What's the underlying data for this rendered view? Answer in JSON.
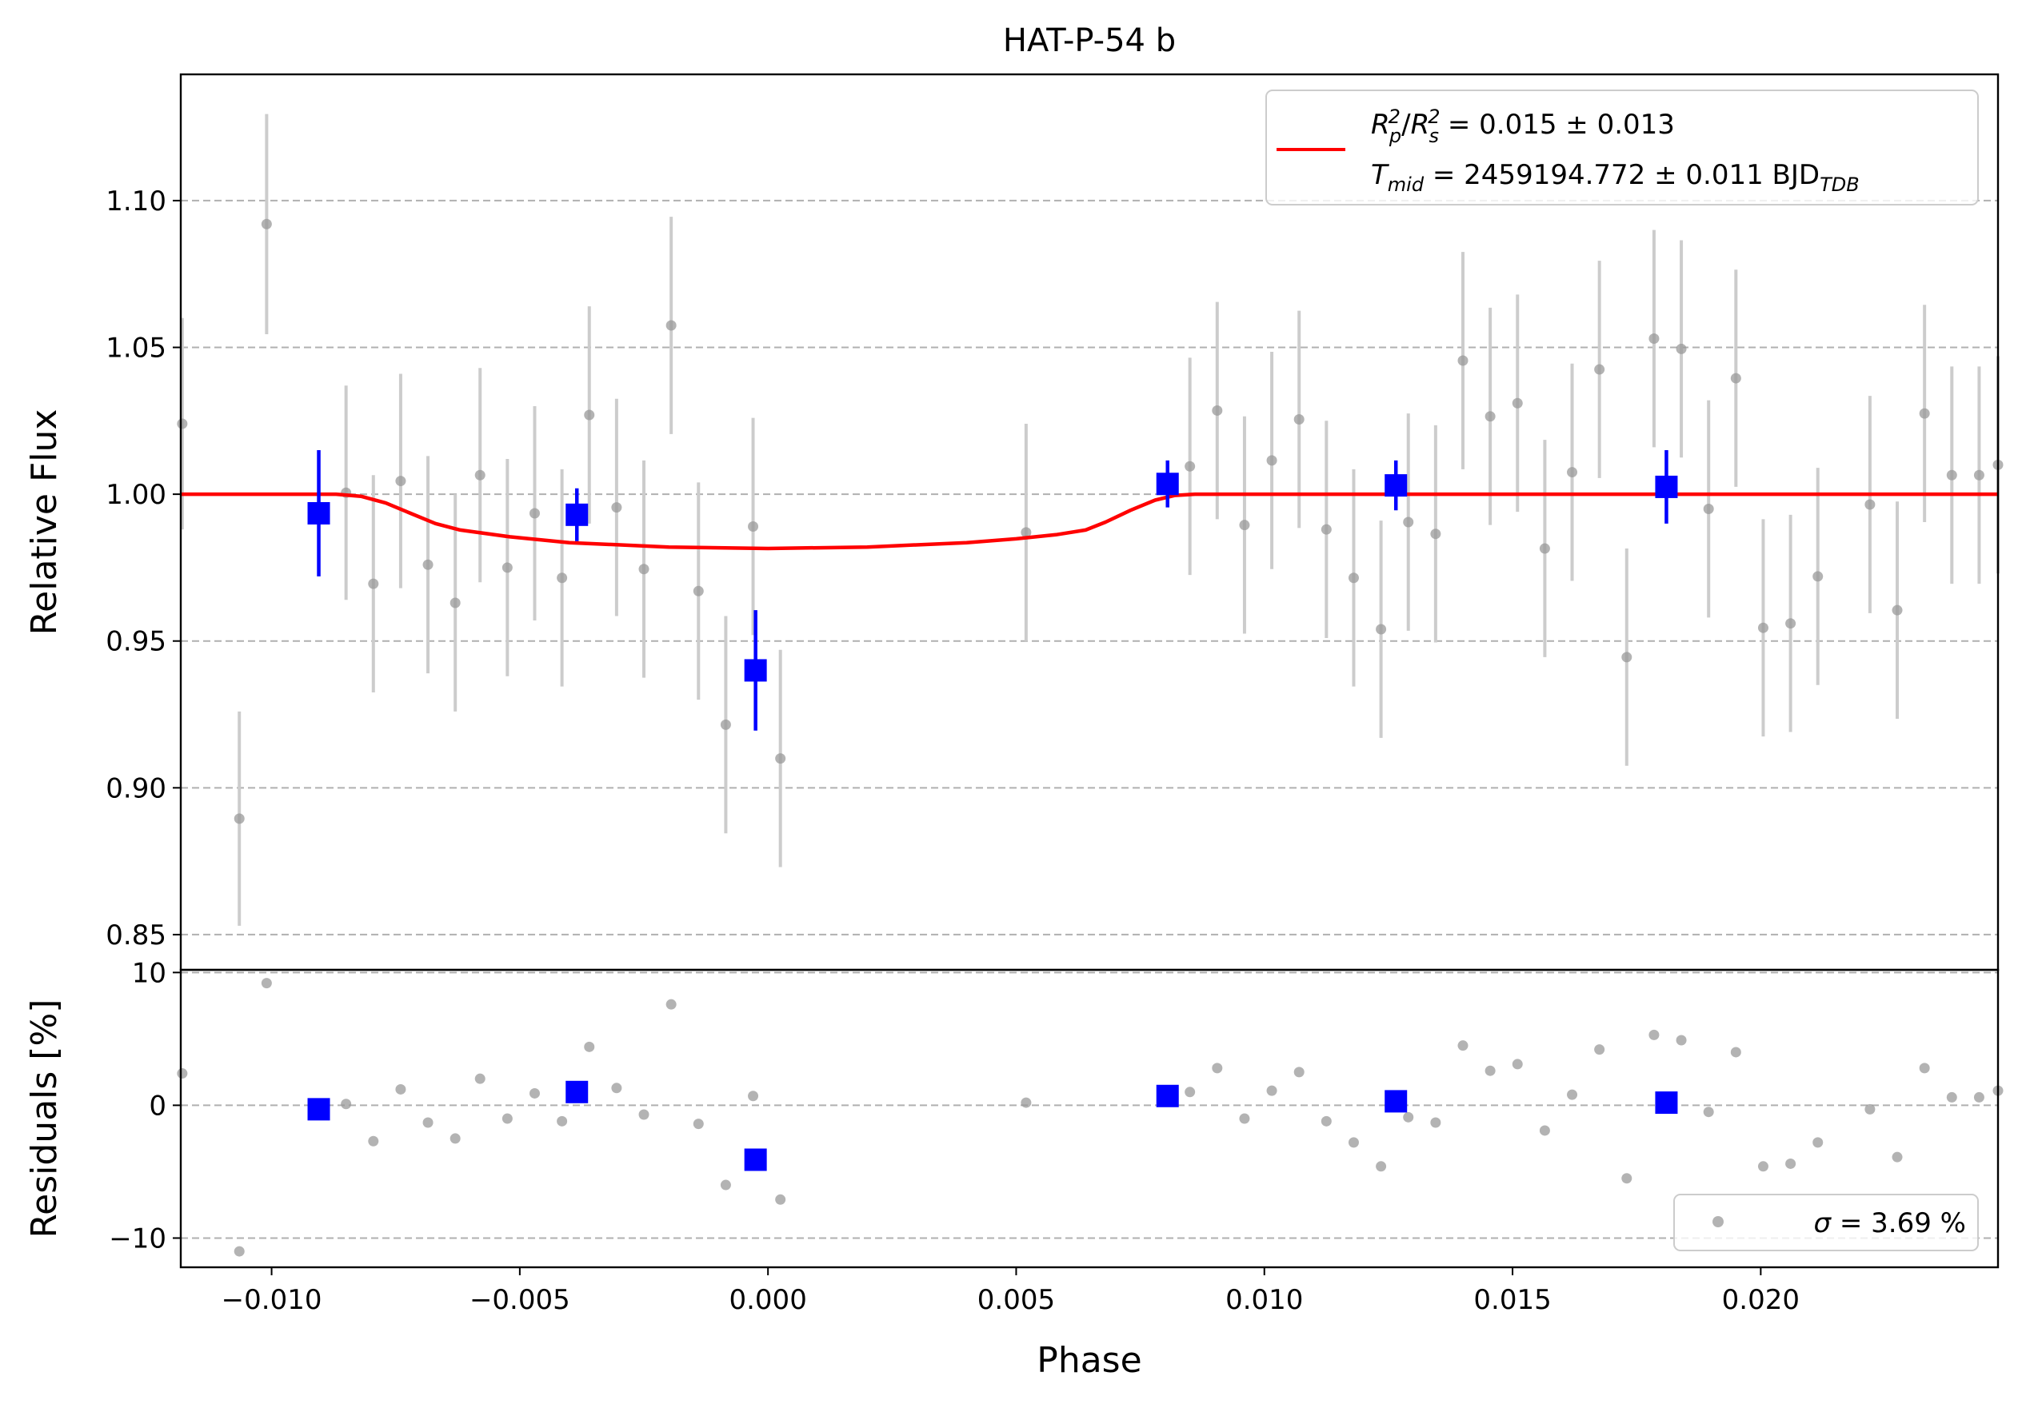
{
  "chart_data": {
    "type": "scatter",
    "title": "HAT-P-54 b",
    "xlabel": "Phase",
    "colors": {
      "raw": "#999999",
      "raw_err": "#cccccc",
      "binned": "#0000ff",
      "model": "#ff0000",
      "grid": "#b0b0b0"
    },
    "top_panel": {
      "ylabel": "Relative Flux",
      "xlim": [
        -0.01183,
        0.02478
      ],
      "ylim": [
        0.838,
        1.143
      ],
      "xticks": [
        -0.01,
        -0.005,
        0.0,
        0.005,
        0.01,
        0.015,
        0.02
      ],
      "xtick_labels": [
        "−0.010",
        "−0.005",
        "0.000",
        "0.005",
        "0.010",
        "0.015",
        "0.020"
      ],
      "yticks": [
        0.85,
        0.9,
        0.95,
        1.0,
        1.05,
        1.1
      ],
      "ytick_labels": [
        "0.85",
        "0.90",
        "0.95",
        "1.00",
        "1.05",
        "1.10"
      ],
      "grid": "horizontal dashed",
      "legend": {
        "placement": "top-right",
        "line1_main": "= 0.015 ± 0.013",
        "line2_main": "= 2459194.772 ± 0.011 BJD",
        "line2_sub": "TDB"
      },
      "raw_series": [
        {
          "x": -0.0118,
          "y": 1.024,
          "err": 0.036
        },
        {
          "x": -0.01065,
          "y": 0.8895,
          "err": 0.0365
        },
        {
          "x": -0.0101,
          "y": 1.092,
          "err": 0.0375
        },
        {
          "x": -0.0085,
          "y": 1.0005,
          "err": 0.0365
        },
        {
          "x": -0.00795,
          "y": 0.9695,
          "err": 0.037
        },
        {
          "x": -0.0074,
          "y": 1.0045,
          "err": 0.0365
        },
        {
          "x": -0.00685,
          "y": 0.976,
          "err": 0.037
        },
        {
          "x": -0.0063,
          "y": 0.963,
          "err": 0.037
        },
        {
          "x": -0.0058,
          "y": 1.0065,
          "err": 0.0365
        },
        {
          "x": -0.00525,
          "y": 0.975,
          "err": 0.037
        },
        {
          "x": -0.0047,
          "y": 0.9935,
          "err": 0.0365
        },
        {
          "x": -0.00415,
          "y": 0.9715,
          "err": 0.037
        },
        {
          "x": -0.0036,
          "y": 1.027,
          "err": 0.037
        },
        {
          "x": -0.00305,
          "y": 0.9955,
          "err": 0.037
        },
        {
          "x": -0.0025,
          "y": 0.9745,
          "err": 0.037
        },
        {
          "x": -0.00195,
          "y": 1.0575,
          "err": 0.037
        },
        {
          "x": -0.0014,
          "y": 0.967,
          "err": 0.037
        },
        {
          "x": -0.00085,
          "y": 0.9215,
          "err": 0.037
        },
        {
          "x": -0.0003,
          "y": 0.989,
          "err": 0.037
        },
        {
          "x": 0.00025,
          "y": 0.91,
          "err": 0.037
        },
        {
          "x": 0.0052,
          "y": 0.987,
          "err": 0.037
        },
        {
          "x": 0.0085,
          "y": 1.0095,
          "err": 0.037
        },
        {
          "x": 0.00905,
          "y": 1.0285,
          "err": 0.037
        },
        {
          "x": 0.0096,
          "y": 0.9895,
          "err": 0.037
        },
        {
          "x": 0.01015,
          "y": 1.0115,
          "err": 0.037
        },
        {
          "x": 0.0107,
          "y": 1.0255,
          "err": 0.037
        },
        {
          "x": 0.01125,
          "y": 0.988,
          "err": 0.037
        },
        {
          "x": 0.0118,
          "y": 0.9715,
          "err": 0.037
        },
        {
          "x": 0.01235,
          "y": 0.954,
          "err": 0.037
        },
        {
          "x": 0.0129,
          "y": 0.9905,
          "err": 0.037
        },
        {
          "x": 0.01345,
          "y": 0.9865,
          "err": 0.037
        },
        {
          "x": 0.014,
          "y": 1.0455,
          "err": 0.037
        },
        {
          "x": 0.01455,
          "y": 1.0265,
          "err": 0.037
        },
        {
          "x": 0.0151,
          "y": 1.031,
          "err": 0.037
        },
        {
          "x": 0.01565,
          "y": 0.9815,
          "err": 0.037
        },
        {
          "x": 0.0162,
          "y": 1.0075,
          "err": 0.037
        },
        {
          "x": 0.01675,
          "y": 1.0425,
          "err": 0.037
        },
        {
          "x": 0.0173,
          "y": 0.9445,
          "err": 0.037
        },
        {
          "x": 0.01785,
          "y": 1.053,
          "err": 0.037
        },
        {
          "x": 0.0184,
          "y": 1.0495,
          "err": 0.037
        },
        {
          "x": 0.01895,
          "y": 0.995,
          "err": 0.037
        },
        {
          "x": 0.0195,
          "y": 1.0395,
          "err": 0.037
        },
        {
          "x": 0.02005,
          "y": 0.9545,
          "err": 0.037
        },
        {
          "x": 0.0206,
          "y": 0.956,
          "err": 0.037
        },
        {
          "x": 0.02115,
          "y": 0.972,
          "err": 0.037
        },
        {
          "x": 0.0222,
          "y": 0.9965,
          "err": 0.037
        },
        {
          "x": 0.02275,
          "y": 0.9605,
          "err": 0.037
        },
        {
          "x": 0.0233,
          "y": 1.0275,
          "err": 0.037
        },
        {
          "x": 0.02385,
          "y": 1.0065,
          "err": 0.037
        },
        {
          "x": 0.0244,
          "y": 1.0065,
          "err": 0.037
        },
        {
          "x": 0.02478,
          "y": 1.01,
          "err": 0.037
        }
      ],
      "binned_series": [
        {
          "x": -0.00905,
          "y": 0.9935,
          "err": 0.0215
        },
        {
          "x": -0.00385,
          "y": 0.993,
          "err": 0.009
        },
        {
          "x": -0.00025,
          "y": 0.94,
          "err": 0.0205
        },
        {
          "x": 0.00805,
          "y": 1.0035,
          "err": 0.008
        },
        {
          "x": 0.01265,
          "y": 1.003,
          "err": 0.0085
        },
        {
          "x": 0.0181,
          "y": 1.0025,
          "err": 0.0125
        }
      ],
      "model": {
        "x": [
          -0.01183,
          -0.0092,
          -0.0087,
          -0.0082,
          -0.0077,
          -0.0072,
          -0.0067,
          -0.0062,
          -0.0052,
          -0.004,
          -0.002,
          0.0,
          0.002,
          0.004,
          0.005,
          0.0058,
          0.0064,
          0.0068,
          0.0073,
          0.0078,
          0.0082,
          0.0086,
          0.0092,
          0.02478
        ],
        "y": [
          1.0,
          1.0,
          1.0,
          0.9993,
          0.997,
          0.9935,
          0.99,
          0.9878,
          0.9855,
          0.9835,
          0.982,
          0.9815,
          0.982,
          0.9835,
          0.9848,
          0.9862,
          0.9878,
          0.9905,
          0.9945,
          0.998,
          0.9996,
          1.0,
          1.0,
          1.0
        ]
      }
    },
    "residual_panel": {
      "ylabel": "Residuals [%]",
      "ylim": [
        -12.2,
        10.2
      ],
      "yticks": [
        -10,
        0,
        10
      ],
      "ytick_labels": [
        "−10",
        "0",
        "10"
      ],
      "grid": "horizontal dashed",
      "legend": {
        "placement": "bottom-right",
        "label": "= 3.69 %"
      },
      "raw_series": [
        {
          "x": -0.0118,
          "y": 2.4
        },
        {
          "x": -0.01065,
          "y": -11.0
        },
        {
          "x": -0.0101,
          "y": 9.2
        },
        {
          "x": -0.0085,
          "y": 0.1
        },
        {
          "x": -0.00795,
          "y": -2.7
        },
        {
          "x": -0.0074,
          "y": 1.2
        },
        {
          "x": -0.00685,
          "y": -1.3
        },
        {
          "x": -0.0063,
          "y": -2.5
        },
        {
          "x": -0.0058,
          "y": 2.0
        },
        {
          "x": -0.00525,
          "y": -1.0
        },
        {
          "x": -0.0047,
          "y": 0.9
        },
        {
          "x": -0.00415,
          "y": -1.2
        },
        {
          "x": -0.0036,
          "y": 4.4
        },
        {
          "x": -0.00305,
          "y": 1.3
        },
        {
          "x": -0.0025,
          "y": -0.7
        },
        {
          "x": -0.00195,
          "y": 7.6
        },
        {
          "x": -0.0014,
          "y": -1.4
        },
        {
          "x": -0.00085,
          "y": -6.0
        },
        {
          "x": -0.0003,
          "y": 0.7
        },
        {
          "x": 0.00025,
          "y": -7.1
        },
        {
          "x": 0.0052,
          "y": 0.2
        },
        {
          "x": 0.0085,
          "y": 1.0
        },
        {
          "x": 0.00905,
          "y": 2.8
        },
        {
          "x": 0.0096,
          "y": -1.0
        },
        {
          "x": 0.01015,
          "y": 1.1
        },
        {
          "x": 0.0107,
          "y": 2.5
        },
        {
          "x": 0.01125,
          "y": -1.2
        },
        {
          "x": 0.0118,
          "y": -2.8
        },
        {
          "x": 0.01235,
          "y": -4.6
        },
        {
          "x": 0.0129,
          "y": -0.9
        },
        {
          "x": 0.01345,
          "y": -1.3
        },
        {
          "x": 0.014,
          "y": 4.5
        },
        {
          "x": 0.01455,
          "y": 2.6
        },
        {
          "x": 0.0151,
          "y": 3.1
        },
        {
          "x": 0.01565,
          "y": -1.9
        },
        {
          "x": 0.0162,
          "y": 0.8
        },
        {
          "x": 0.01675,
          "y": 4.2
        },
        {
          "x": 0.0173,
          "y": -5.5
        },
        {
          "x": 0.01785,
          "y": 5.3
        },
        {
          "x": 0.0184,
          "y": 4.9
        },
        {
          "x": 0.01895,
          "y": -0.5
        },
        {
          "x": 0.0195,
          "y": 4.0
        },
        {
          "x": 0.02005,
          "y": -4.6
        },
        {
          "x": 0.0206,
          "y": -4.4
        },
        {
          "x": 0.02115,
          "y": -2.8
        },
        {
          "x": 0.0222,
          "y": -0.3
        },
        {
          "x": 0.02275,
          "y": -3.9
        },
        {
          "x": 0.0233,
          "y": 2.8
        },
        {
          "x": 0.02385,
          "y": 0.6
        },
        {
          "x": 0.0244,
          "y": 0.6
        },
        {
          "x": 0.02478,
          "y": 1.1
        }
      ],
      "binned_series": [
        {
          "x": -0.00905,
          "y": -0.3
        },
        {
          "x": -0.00385,
          "y": 1.0
        },
        {
          "x": -0.00025,
          "y": -4.1
        },
        {
          "x": 0.00805,
          "y": 0.7
        },
        {
          "x": 0.01265,
          "y": 0.3
        },
        {
          "x": 0.0181,
          "y": 0.2
        }
      ]
    }
  }
}
